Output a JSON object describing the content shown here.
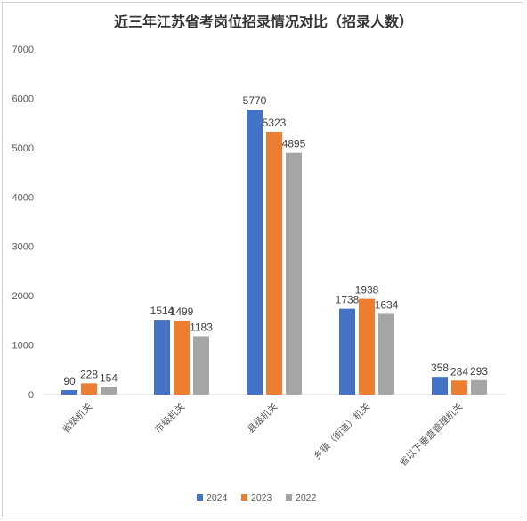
{
  "chart_data": {
    "type": "bar",
    "title": "近三年江苏省考岗位招录情况对比（招录人数）",
    "categories": [
      "省级机关",
      "市级机关",
      "县级机关",
      "乡镇（街道）机关",
      "省以下垂直管理机关"
    ],
    "series": [
      {
        "name": "2024",
        "color": "#4472C4",
        "values": [
          90,
          1514,
          5770,
          1738,
          358
        ]
      },
      {
        "name": "2023",
        "color": "#ED7D31",
        "values": [
          228,
          1499,
          5323,
          1938,
          284
        ]
      },
      {
        "name": "2022",
        "color": "#A5A5A5",
        "values": [
          154,
          1183,
          4895,
          1634,
          293
        ]
      }
    ],
    "ylim": [
      0,
      7000
    ],
    "yticks": [
      0,
      1000,
      2000,
      3000,
      4000,
      5000,
      6000,
      7000
    ],
    "xlabel": "",
    "ylabel": "",
    "grid": false,
    "legend": "bottom"
  }
}
